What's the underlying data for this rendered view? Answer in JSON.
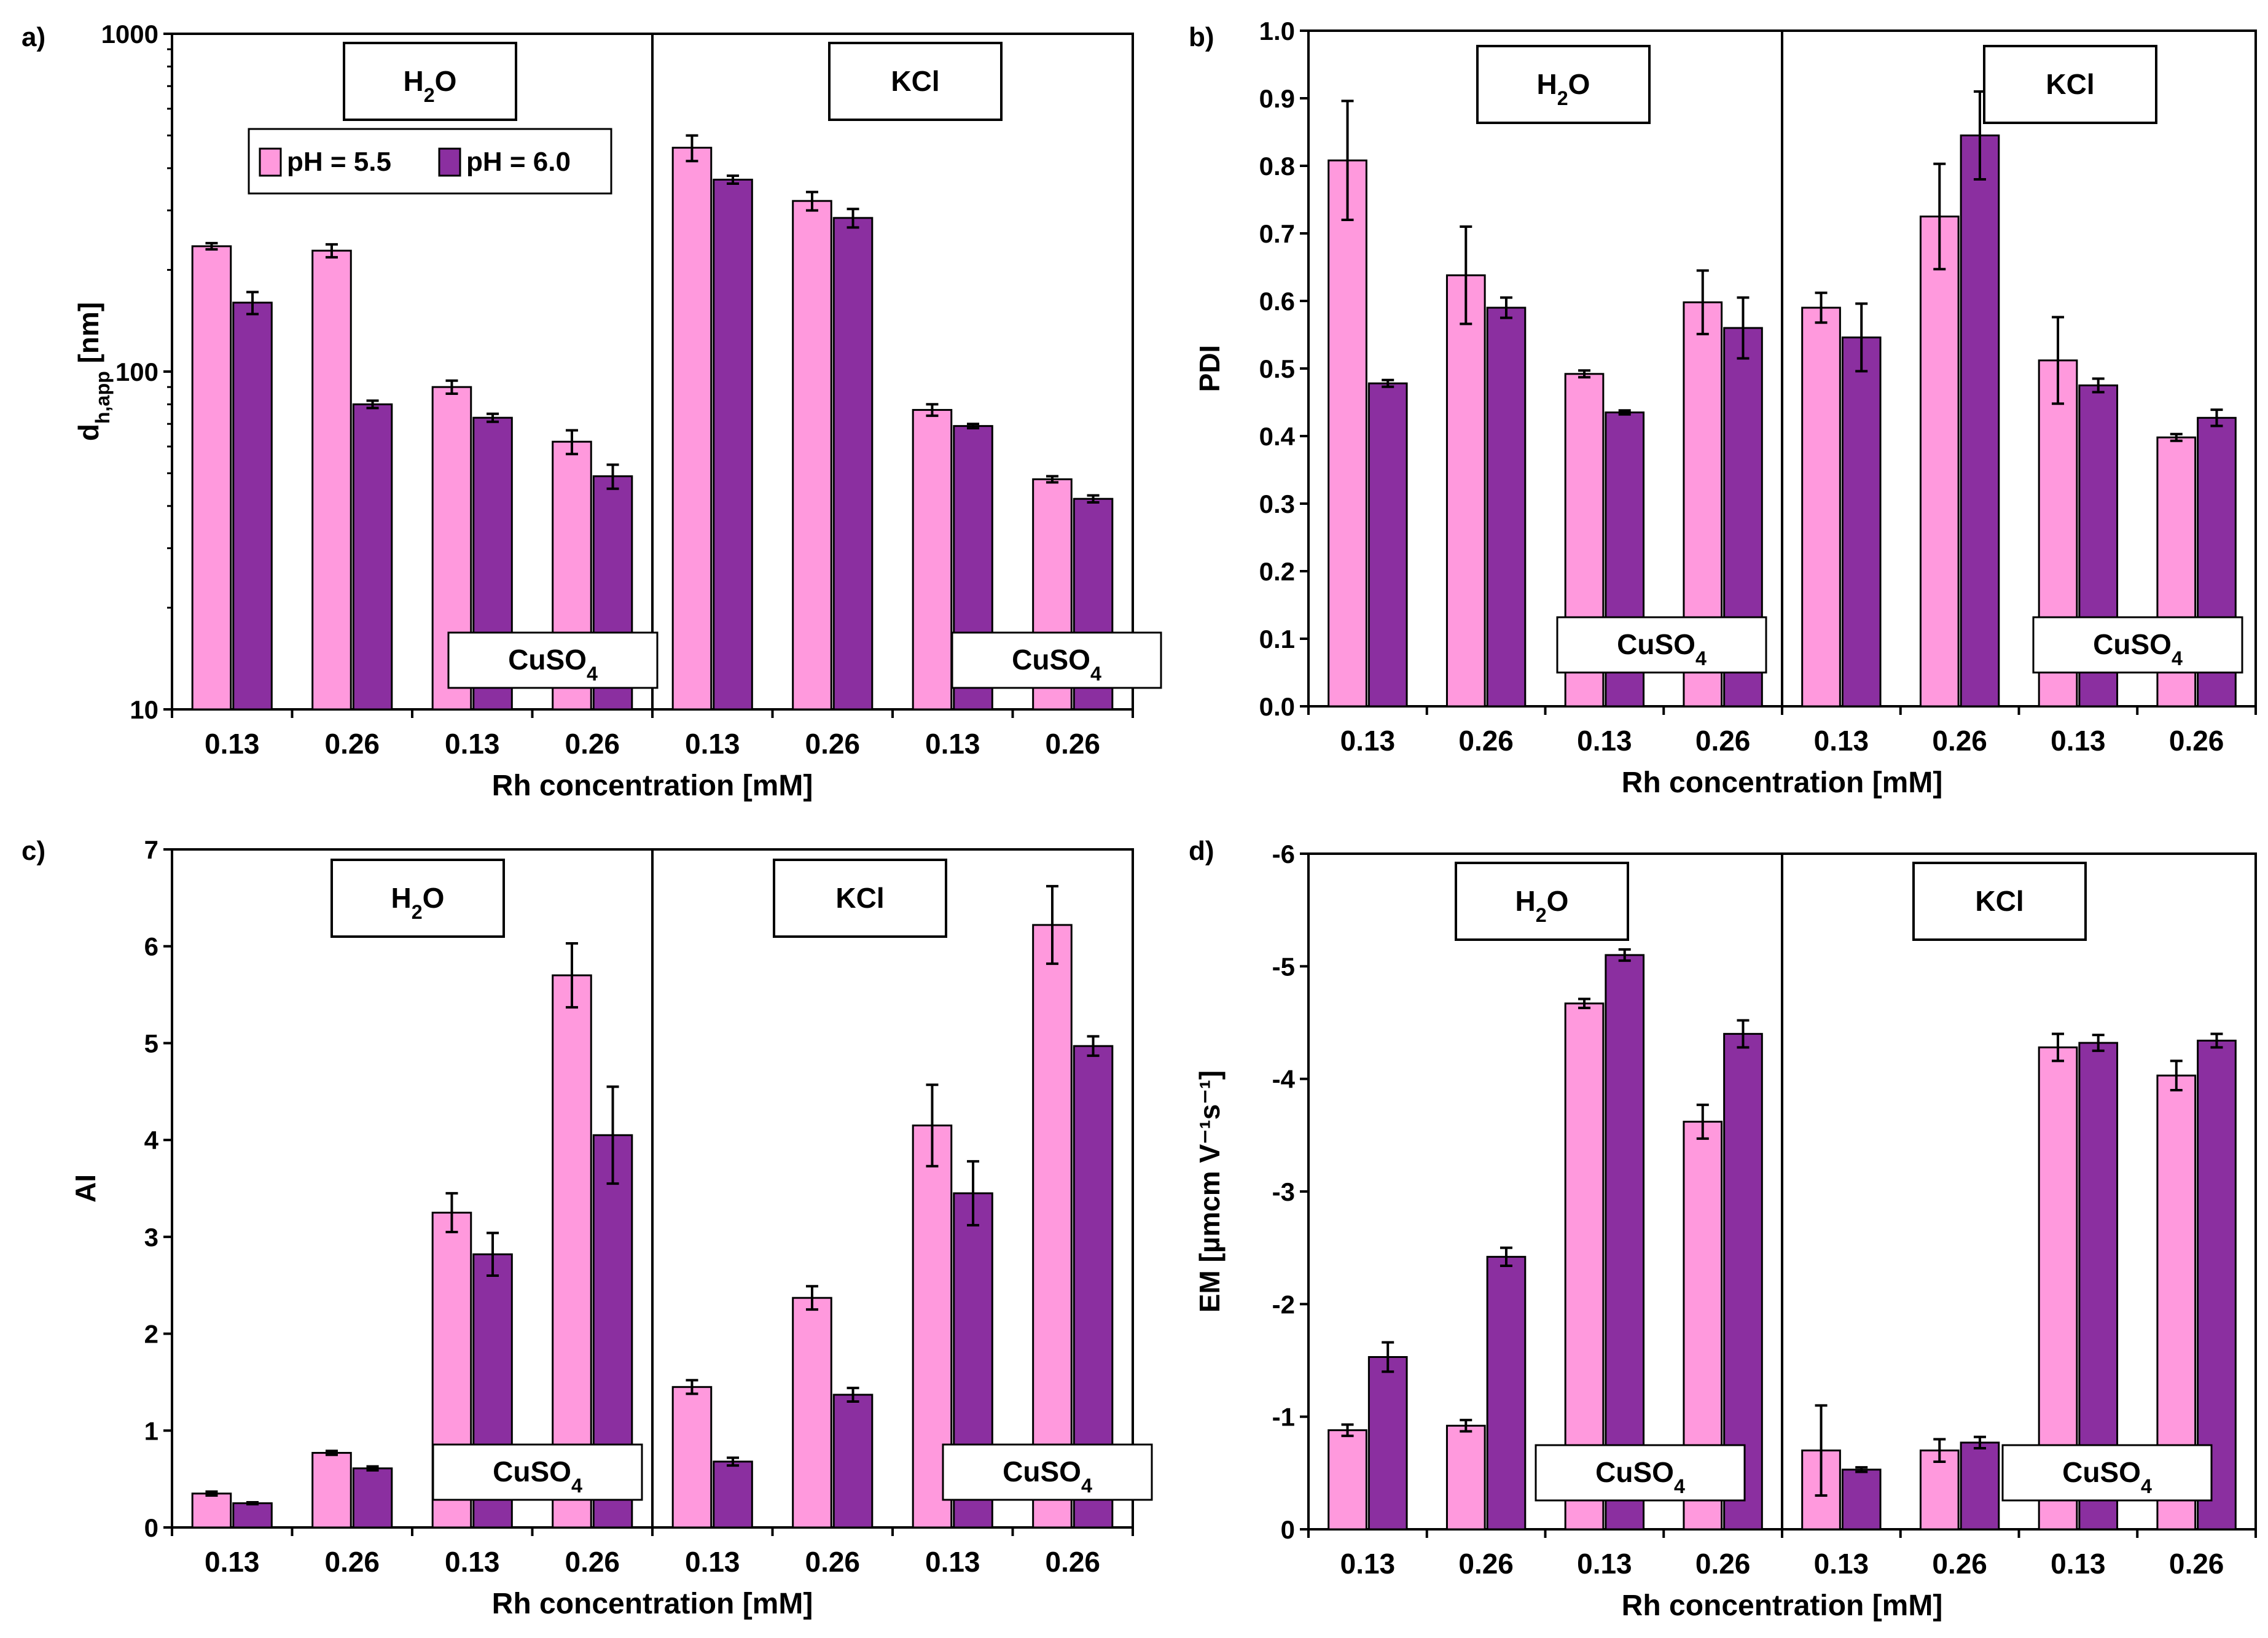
{
  "colors": {
    "pink": "#FF99DD",
    "purple": "#8B2FA0"
  },
  "legend": [
    "pH = 5.5",
    "pH = 6.0"
  ],
  "chart_data": [
    {
      "type": "bar",
      "panel_label": "a)",
      "ylabel_main": "d",
      "ylabel_sub": "h,app",
      "ylabel_tail": " [nm]",
      "xlabel": "Rh concentration [mM]",
      "yscale": "log",
      "ylim": [
        10,
        1000
      ],
      "yticks": [
        10,
        100,
        1000
      ],
      "ytick_labels": [
        "10",
        "100",
        "1000"
      ],
      "categories": [
        "0.13",
        "0.26",
        "0.13",
        "0.26",
        "0.13",
        "0.26",
        "0.13",
        "0.26"
      ],
      "groups": [
        {
          "main": "H",
          "sub": "2",
          "tail": "O"
        },
        {
          "main": "KCl",
          "sub": "",
          "tail": ""
        }
      ],
      "subgroups": [
        {
          "main": "CuSO",
          "sub": "4"
        },
        {
          "main": "CuSO",
          "sub": "4"
        }
      ],
      "legend_shown": true,
      "series": [
        {
          "name": "pH = 5.5",
          "values": [
            235,
            228,
            90,
            62,
            460,
            320,
            77,
            48
          ],
          "errors": [
            5,
            10,
            4,
            5,
            40,
            20,
            3,
            1
          ]
        },
        {
          "name": "pH = 6.0",
          "values": [
            160,
            80,
            73,
            49,
            370,
            285,
            69,
            42
          ],
          "errors": [
            12,
            2,
            2,
            4,
            10,
            18,
            1,
            1
          ]
        }
      ]
    },
    {
      "type": "bar",
      "panel_label": "b)",
      "ylabel_main": "PDI",
      "ylabel_sub": "",
      "ylabel_tail": "",
      "xlabel": "Rh concentration [mM]",
      "yscale": "linear",
      "ylim": [
        0,
        1.0
      ],
      "yticks": [
        0,
        0.1,
        0.2,
        0.3,
        0.4,
        0.5,
        0.6,
        0.7,
        0.8,
        0.9,
        1.0
      ],
      "ytick_labels": [
        "0.0",
        "0.1",
        "0.2",
        "0.3",
        "0.4",
        "0.5",
        "0.6",
        "0.7",
        "0.8",
        "0.9",
        "1.0"
      ],
      "categories": [
        "0.13",
        "0.26",
        "0.13",
        "0.26",
        "0.13",
        "0.26",
        "0.13",
        "0.26"
      ],
      "groups": [
        {
          "main": "H",
          "sub": "2",
          "tail": "O"
        },
        {
          "main": "KCl",
          "sub": "",
          "tail": ""
        }
      ],
      "subgroups": [
        {
          "main": "CuSO",
          "sub": "4"
        },
        {
          "main": "CuSO",
          "sub": "4"
        }
      ],
      "legend_shown": false,
      "series": [
        {
          "name": "pH = 5.5",
          "values": [
            0.808,
            0.638,
            0.492,
            0.598,
            0.59,
            0.725,
            0.512,
            0.398
          ],
          "errors": [
            0.088,
            0.072,
            0.005,
            0.047,
            0.022,
            0.078,
            0.064,
            0.005
          ]
        },
        {
          "name": "pH = 6.0",
          "values": [
            0.478,
            0.59,
            0.435,
            0.56,
            0.546,
            0.845,
            0.475,
            0.427
          ],
          "errors": [
            0.005,
            0.015,
            0.003,
            0.045,
            0.05,
            0.065,
            0.01,
            0.012
          ]
        }
      ]
    },
    {
      "type": "bar",
      "panel_label": "c)",
      "ylabel_main": "AI",
      "ylabel_sub": "",
      "ylabel_tail": "",
      "xlabel": "Rh concentration [mM]",
      "yscale": "linear",
      "ylim": [
        0,
        7
      ],
      "yticks": [
        0,
        1,
        2,
        3,
        4,
        5,
        6,
        7
      ],
      "ytick_labels": [
        "0",
        "1",
        "2",
        "3",
        "4",
        "5",
        "6",
        "7"
      ],
      "categories": [
        "0.13",
        "0.26",
        "0.13",
        "0.26",
        "0.13",
        "0.26",
        "0.13",
        "0.26"
      ],
      "groups": [
        {
          "main": "H",
          "sub": "2",
          "tail": "O"
        },
        {
          "main": "KCl",
          "sub": "",
          "tail": ""
        }
      ],
      "subgroups": [
        {
          "main": "CuSO",
          "sub": "4"
        },
        {
          "main": "CuSO",
          "sub": "4"
        }
      ],
      "legend_shown": false,
      "series": [
        {
          "name": "pH = 5.5",
          "values": [
            0.35,
            0.77,
            3.25,
            5.7,
            1.45,
            2.37,
            4.15,
            6.22
          ],
          "errors": [
            0.02,
            0.02,
            0.2,
            0.33,
            0.07,
            0.12,
            0.42,
            0.4
          ]
        },
        {
          "name": "pH = 6.0",
          "values": [
            0.25,
            0.61,
            2.82,
            4.05,
            0.68,
            1.37,
            3.45,
            4.97
          ],
          "errors": [
            0.01,
            0.02,
            0.22,
            0.5,
            0.04,
            0.07,
            0.33,
            0.1
          ]
        }
      ]
    },
    {
      "type": "bar",
      "panel_label": "d)",
      "ylabel_main": "EM [µmcm V",
      "ylabel_sub": "",
      "ylabel_tail": "",
      "ylabel_full": "EM [µmcm V⁻¹s⁻¹]",
      "xlabel": "Rh concentration [mM]",
      "yscale": "linear",
      "yinvert": true,
      "ylim": [
        0,
        -6
      ],
      "yticks": [
        0,
        -1,
        -2,
        -3,
        -4,
        -5,
        -6
      ],
      "ytick_labels": [
        "0",
        "-1",
        "-2",
        "-3",
        "-4",
        "-5",
        "-6"
      ],
      "categories": [
        "0.13",
        "0.26",
        "0.13",
        "0.26",
        "0.13",
        "0.26",
        "0.13",
        "0.26"
      ],
      "groups": [
        {
          "main": "H",
          "sub": "2",
          "tail": "O"
        },
        {
          "main": "KCl",
          "sub": "",
          "tail": ""
        }
      ],
      "subgroups": [
        {
          "main": "CuSO",
          "sub": "4"
        },
        {
          "main": "CuSO",
          "sub": "4"
        }
      ],
      "legend_shown": false,
      "series": [
        {
          "name": "pH = 5.5",
          "values": [
            -0.88,
            -0.92,
            -4.67,
            -3.62,
            -0.7,
            -0.7,
            -4.28,
            -4.03
          ],
          "errors": [
            0.05,
            0.05,
            0.04,
            0.15,
            0.4,
            0.1,
            0.12,
            0.13
          ]
        },
        {
          "name": "pH = 6.0",
          "values": [
            -1.53,
            -2.42,
            -5.1,
            -4.4,
            -0.53,
            -0.77,
            -4.32,
            -4.34
          ],
          "errors": [
            0.13,
            0.08,
            0.05,
            0.12,
            0.02,
            0.05,
            0.07,
            0.06
          ]
        }
      ]
    }
  ]
}
